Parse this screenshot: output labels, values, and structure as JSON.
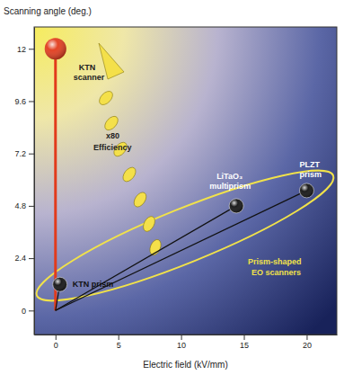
{
  "chart_data": {
    "type": "scatter",
    "x_label": "Electric field (kV/mm)",
    "y_label": "Scanning angle (deg.)",
    "x": [
      0,
      0.35,
      14.4,
      20
    ],
    "values": [
      12,
      1.2,
      4.8,
      5.5
    ],
    "labels": [
      [
        "KTN",
        "scanner"
      ],
      [
        "KTN prism"
      ],
      [
        "LiTaO₃",
        "multiprism"
      ],
      [
        "PLZT",
        "prism"
      ]
    ],
    "colors": [
      "#e23b1c",
      "#111111",
      "#111111",
      "#111111"
    ],
    "annotations": [
      "x80",
      "Efficiency",
      "Prism-shaped",
      "EO scanners"
    ],
    "xlim": [
      -1.7,
      22.4
    ],
    "ylim": [
      -1.1,
      13
    ],
    "xticks": [
      0,
      5,
      10,
      15,
      20
    ],
    "yticks": [
      0,
      2.4,
      4.8,
      7.2,
      9.6,
      12
    ],
    "grid": false
  }
}
